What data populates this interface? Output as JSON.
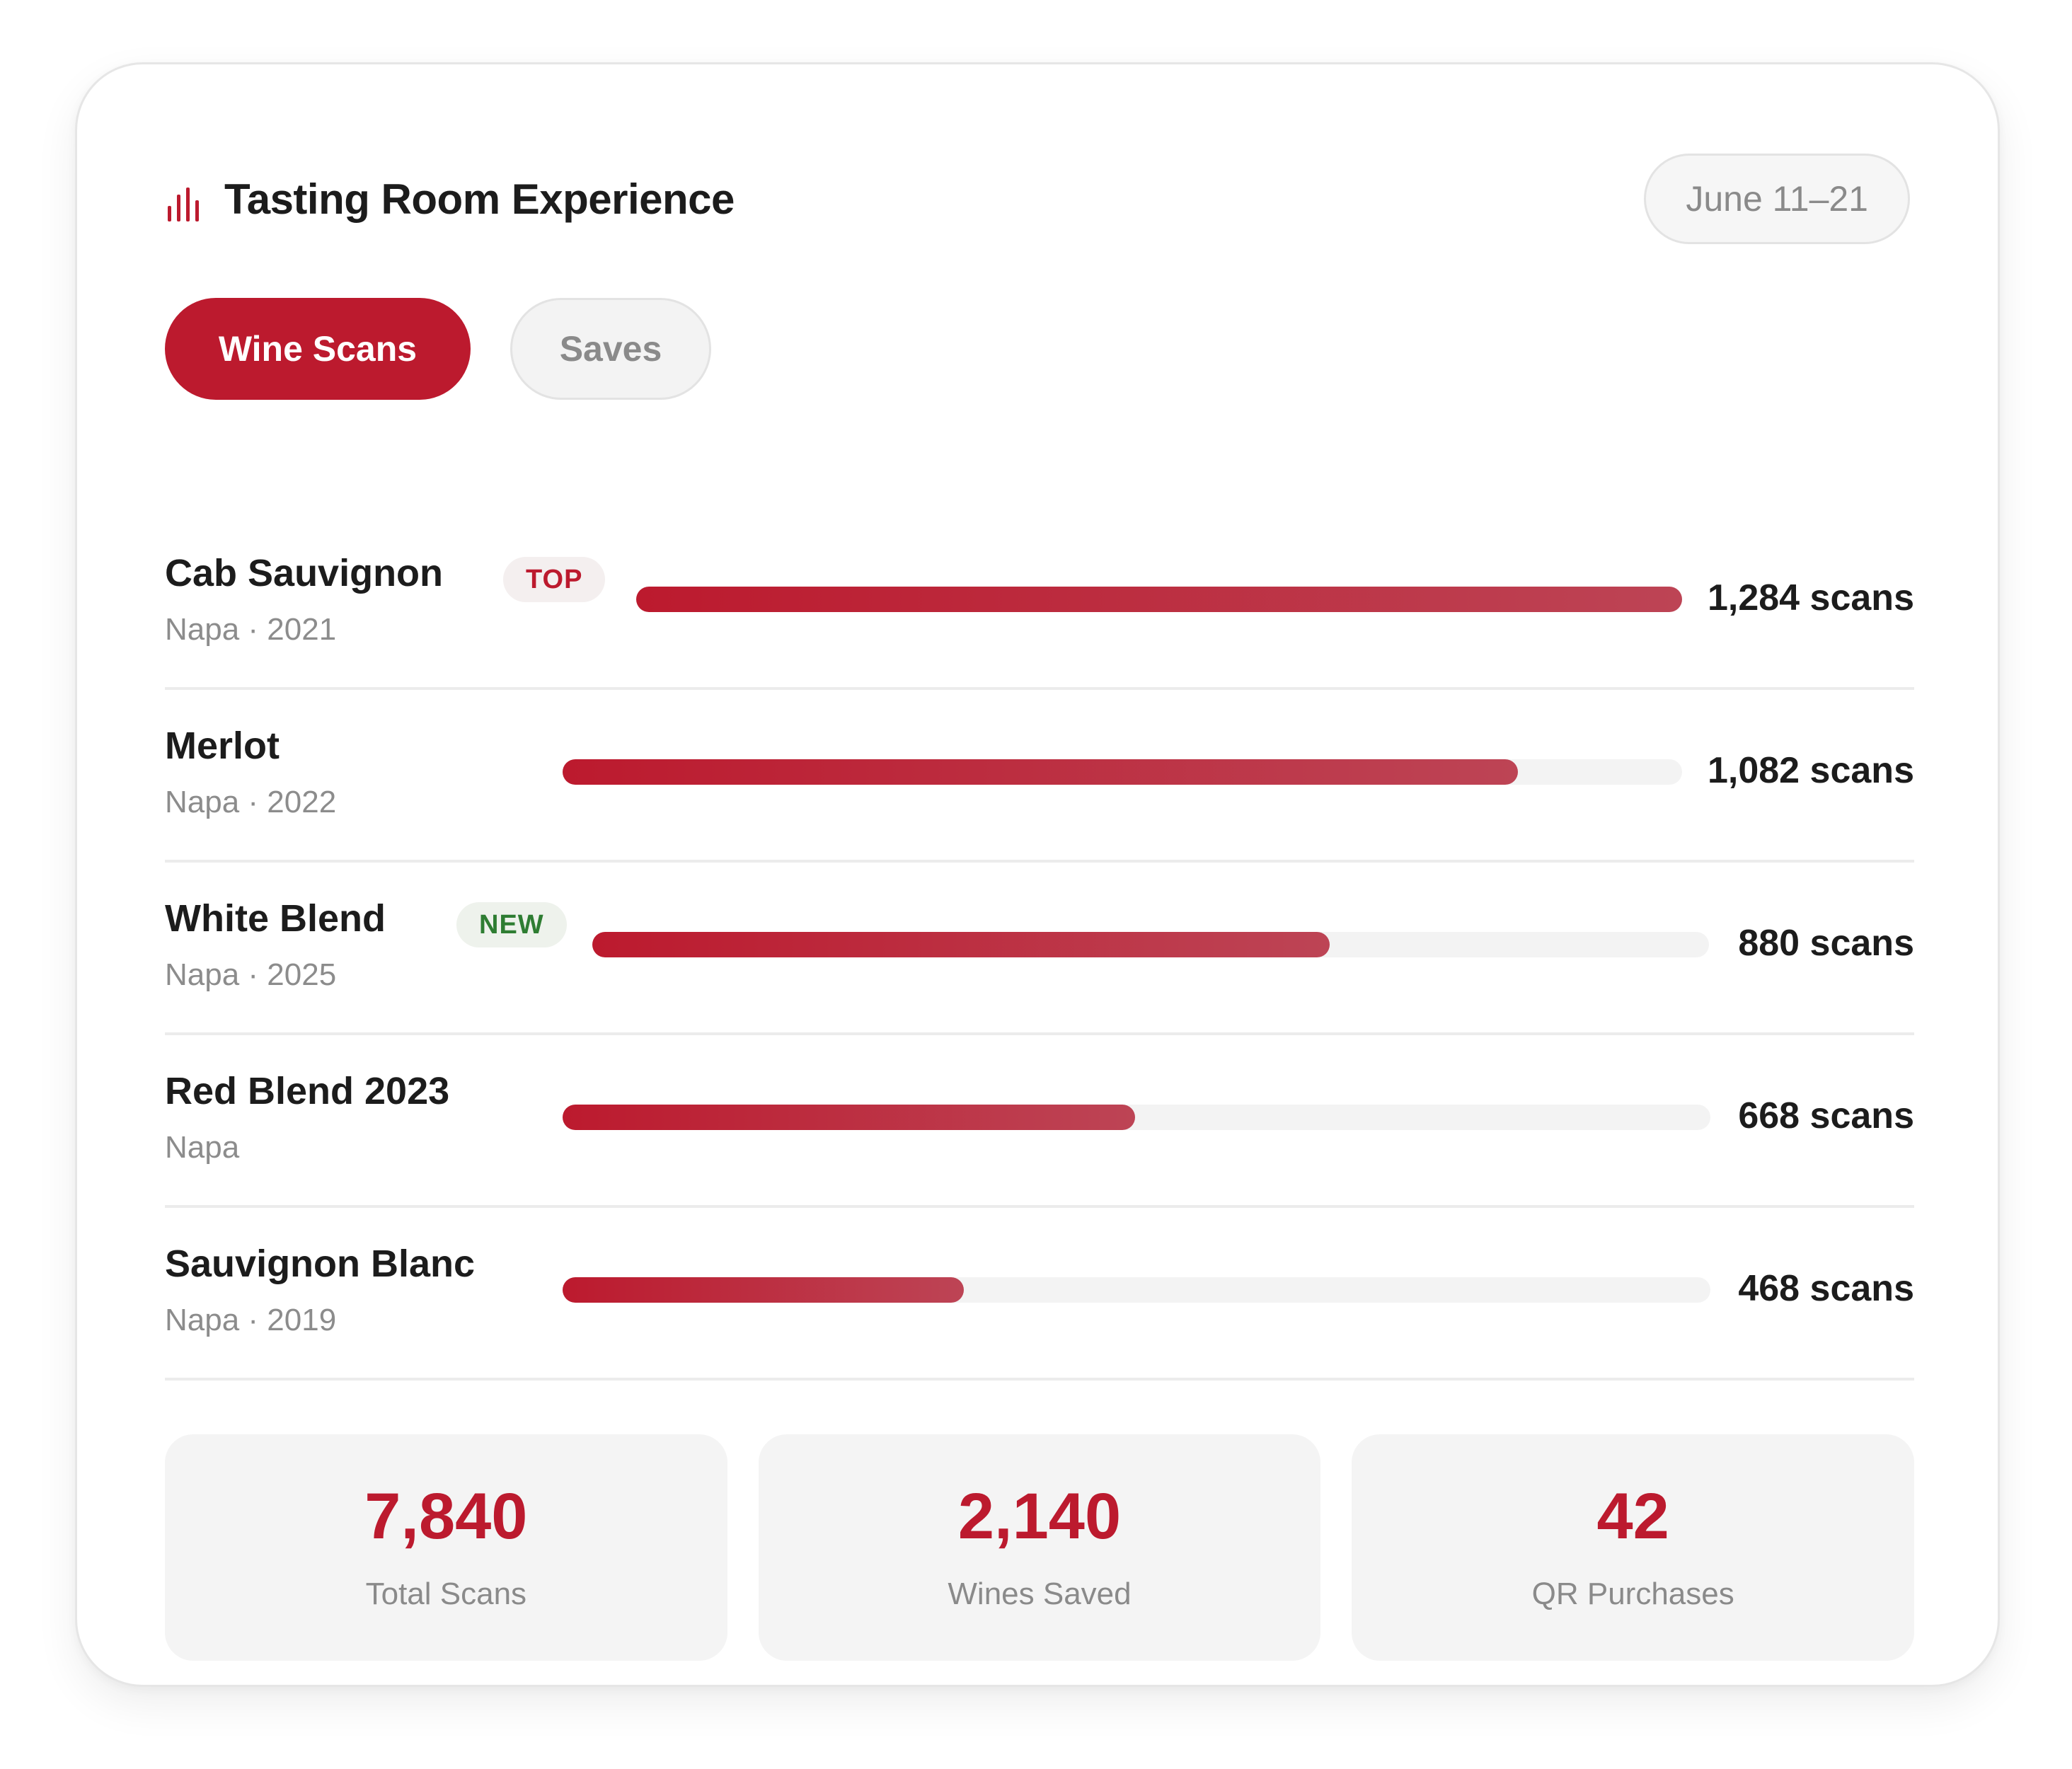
{
  "header": {
    "title": "Tasting Room Experience",
    "date_range": "June 11–21",
    "icon": "bar-chart-icon"
  },
  "tabs": [
    {
      "label": "Wine Scans",
      "active": true
    },
    {
      "label": "Saves",
      "active": false
    }
  ],
  "colors": {
    "accent": "#bc1a2e",
    "new_badge": "#2e7d32"
  },
  "wines": [
    {
      "name": "Cab Sauvignon",
      "meta": "Napa · 2021",
      "badge": "TOP",
      "scans": 1284,
      "count_label": "1,284 scans"
    },
    {
      "name": "Merlot",
      "meta": "Napa · 2022",
      "badge": "",
      "scans": 1082,
      "count_label": "1,082 scans"
    },
    {
      "name": "White Blend",
      "meta": "Napa · 2025",
      "badge": "NEW",
      "scans": 880,
      "count_label": "880 scans"
    },
    {
      "name": "Red Blend 2023",
      "meta": "Napa",
      "badge": "",
      "scans": 668,
      "count_label": "668 scans"
    },
    {
      "name": "Sauvignon Blanc",
      "meta": "Napa · 2019",
      "badge": "",
      "scans": 468,
      "count_label": "468 scans"
    }
  ],
  "stats": [
    {
      "value": "7,840",
      "label": "Total Scans"
    },
    {
      "value": "2,140",
      "label": "Wines Saved"
    },
    {
      "value": "42",
      "label": "QR Purchases"
    }
  ]
}
